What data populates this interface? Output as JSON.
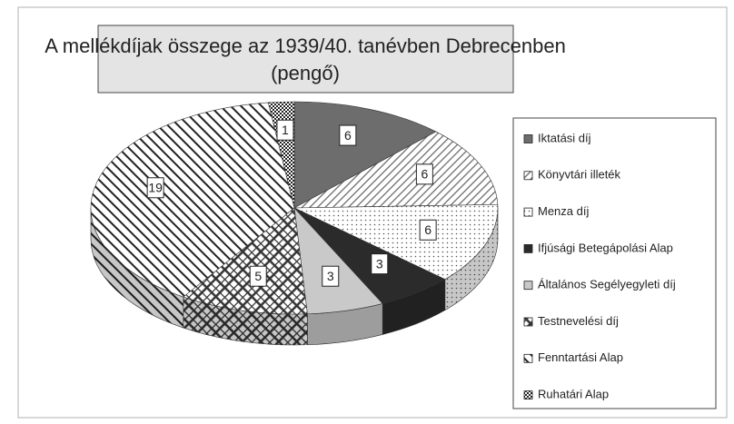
{
  "chart_data": {
    "type": "pie3d",
    "title": "A mellékdíjak összege az 1939/40. tanévben Debrecenben",
    "subtitle": "(pengő)",
    "categories": [
      "Iktatási díj",
      "Könyvtári illeték",
      "Menza díj",
      "Ifjúsági Betegápolási Alap",
      "Általános Segélyegyleti díj",
      "Testnevelési díj",
      "Fenntartási Alap",
      "Ruhatári Alap"
    ],
    "values": [
      6,
      6,
      6,
      3,
      3,
      5,
      19,
      1
    ],
    "colors": [
      "#6d6d6d",
      "#ffffff",
      "#ffffff",
      "#2b2b2b",
      "#c9c9c9",
      "#ffffff",
      "#ffffff",
      "#ffffff"
    ],
    "patterns": [
      "solid",
      "hatch",
      "dots",
      "solid",
      "solid",
      "cross",
      "stripes",
      "checker"
    ],
    "legend": "right"
  }
}
